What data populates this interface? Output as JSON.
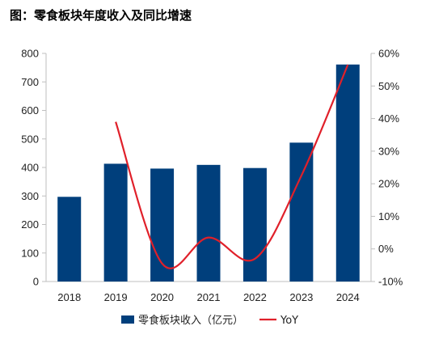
{
  "title": "图：零食板块年度收入及同比增速",
  "chart_data": {
    "type": "bar",
    "title": "图：零食板块年度收入及同比增速",
    "categories": [
      "2018",
      "2019",
      "2020",
      "2021",
      "2022",
      "2023",
      "2024"
    ],
    "series": [
      {
        "name": "零食板块收入（亿元）",
        "type": "bar",
        "axis": "left",
        "color": "#003f7c",
        "values": [
          297,
          413,
          396,
          409,
          398,
          487,
          761
        ]
      },
      {
        "name": "YoY",
        "type": "line",
        "axis": "right",
        "color": "#e0202a",
        "values": [
          null,
          39.0,
          -4.5,
          3.5,
          -3.0,
          22.5,
          56.5
        ]
      }
    ],
    "y_left": {
      "min": 0,
      "max": 800,
      "ticks": [
        0,
        100,
        200,
        300,
        400,
        500,
        600,
        700,
        800
      ]
    },
    "y_right": {
      "min": -10,
      "max": 60,
      "ticks": [
        "-10%",
        "0%",
        "10%",
        "20%",
        "30%",
        "40%",
        "50%",
        "60%"
      ]
    },
    "grid": false,
    "legend_position": "bottom"
  }
}
